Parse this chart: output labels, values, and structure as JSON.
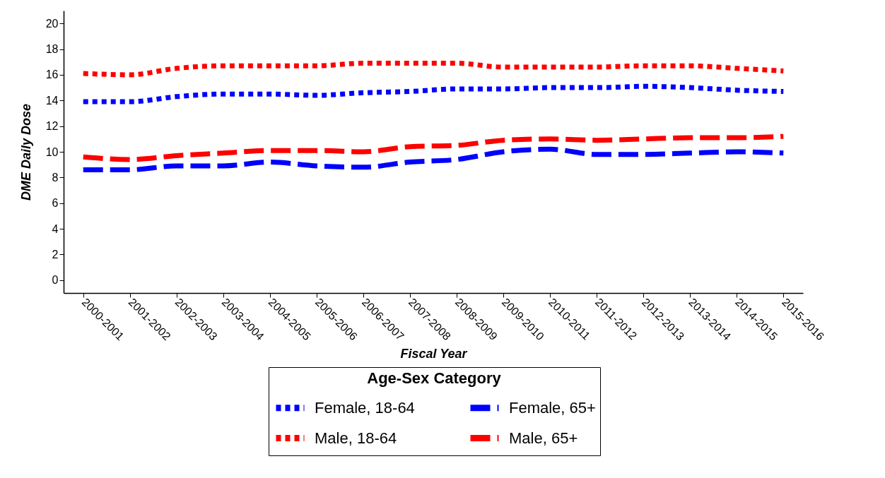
{
  "chart_data": {
    "type": "line",
    "xlabel": "Fiscal Year",
    "ylabel": "DME Daily Dose",
    "legend_title": "Age-Sex Category",
    "legend": "bottom",
    "grid": false,
    "categories": [
      "2000-2001",
      "2001-2002",
      "2002-2003",
      "2003-2004",
      "2004-2005",
      "2005-2006",
      "2006-2007",
      "2007-2008",
      "2008-2009",
      "2009-2010",
      "2010-2011",
      "2011-2012",
      "2012-2013",
      "2013-2014",
      "2014-2015",
      "2015-2016"
    ],
    "ylim": [
      -1,
      21
    ],
    "yticks": [
      0,
      2,
      4,
      6,
      8,
      10,
      12,
      14,
      16,
      18,
      20
    ],
    "series": [
      {
        "name": "Female, 18-64",
        "color": "#0000ff",
        "line_style": "dotted",
        "values": [
          13.9,
          13.9,
          14.3,
          14.5,
          14.5,
          14.4,
          14.6,
          14.7,
          14.9,
          14.9,
          15.0,
          15.0,
          15.1,
          15.0,
          14.8,
          14.7
        ]
      },
      {
        "name": "Female, 65+",
        "color": "#0000ff",
        "line_style": "dashed",
        "values": [
          8.6,
          8.6,
          8.9,
          8.9,
          9.2,
          8.9,
          8.8,
          9.2,
          9.4,
          10.0,
          10.2,
          9.8,
          9.8,
          9.9,
          10.0,
          9.9
        ]
      },
      {
        "name": "Male, 18-64",
        "color": "#ff0000",
        "line_style": "dotted",
        "values": [
          16.1,
          16.0,
          16.5,
          16.7,
          16.7,
          16.7,
          16.9,
          16.9,
          16.9,
          16.6,
          16.6,
          16.6,
          16.7,
          16.7,
          16.5,
          16.3
        ]
      },
      {
        "name": "Male, 65+",
        "color": "#ff0000",
        "line_style": "dashed",
        "values": [
          9.6,
          9.4,
          9.7,
          9.9,
          10.1,
          10.1,
          10.0,
          10.4,
          10.5,
          10.9,
          11.0,
          10.9,
          11.0,
          11.1,
          11.1,
          11.2
        ]
      }
    ]
  }
}
